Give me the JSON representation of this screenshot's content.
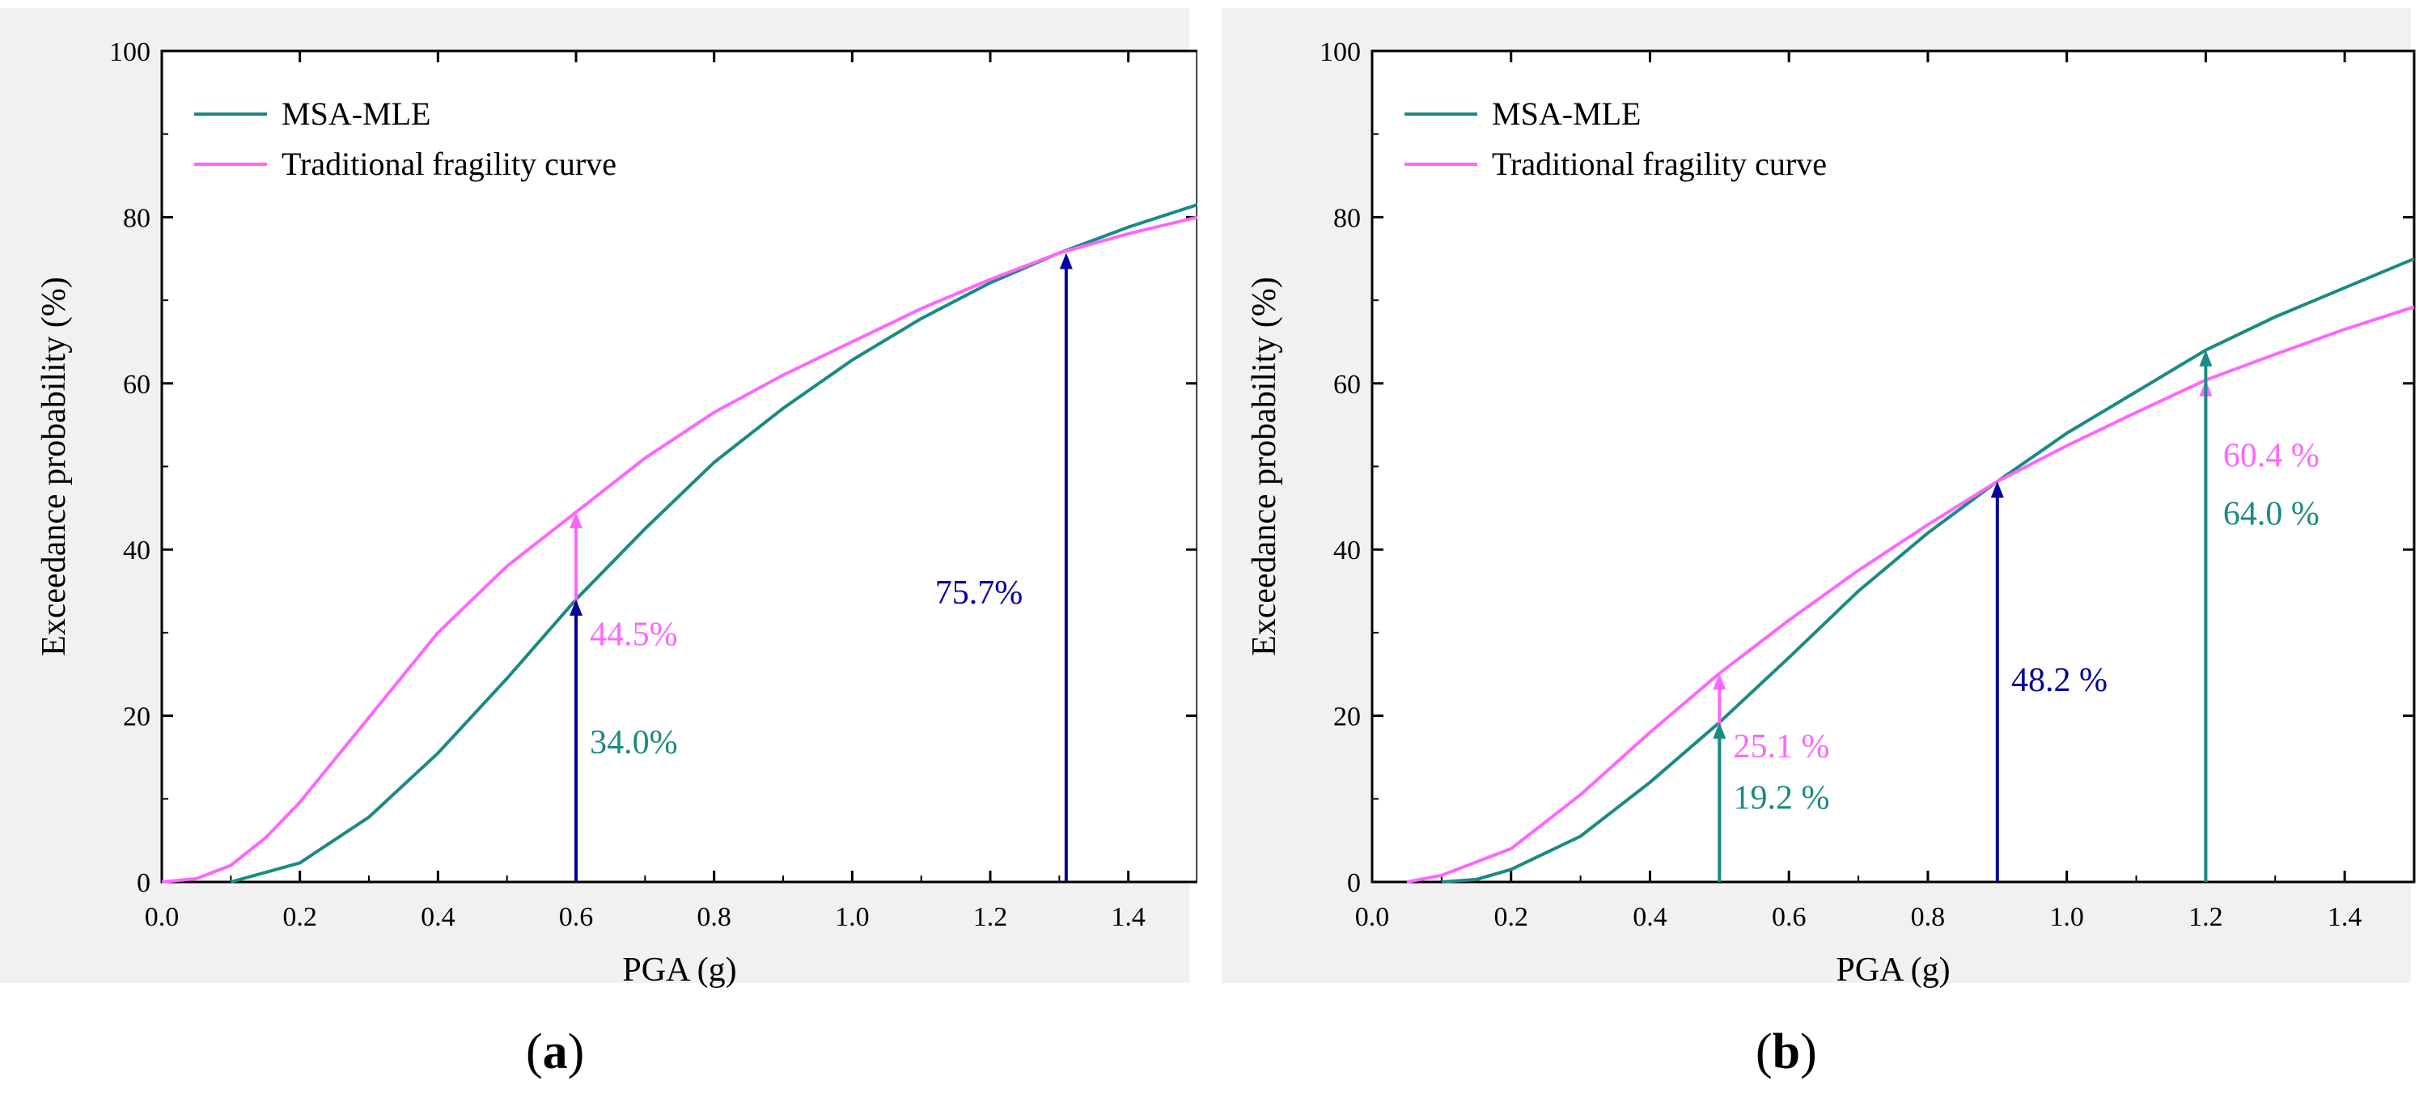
{
  "chart_data": [
    {
      "id": "a",
      "type": "line",
      "caption_letter": "a",
      "xlabel": "PGA (g)",
      "ylabel": "Exceedance probability (%)",
      "xlim": [
        0,
        1.5
      ],
      "ylim": [
        0,
        100
      ],
      "xticks": [
        "0.0",
        "0.2",
        "0.4",
        "0.6",
        "0.8",
        "1.0",
        "1.2",
        "1.4"
      ],
      "yticks": [
        "0",
        "20",
        "40",
        "60",
        "80",
        "100"
      ],
      "legend": [
        {
          "name": "MSA-MLE",
          "color": "#1a8a84"
        },
        {
          "name": "Traditional fragility curve",
          "color": "#ff66ff"
        }
      ],
      "series": [
        {
          "name": "MSA-MLE",
          "color": "#1a8a84",
          "x": [
            0.1,
            0.2,
            0.3,
            0.4,
            0.5,
            0.6,
            0.7,
            0.8,
            0.9,
            1.0,
            1.1,
            1.2,
            1.3,
            1.4,
            1.5
          ],
          "y": [
            0,
            2.3,
            7.8,
            15.5,
            24.5,
            34.0,
            42.5,
            50.5,
            57.0,
            62.8,
            67.8,
            72.1,
            75.7,
            78.8,
            81.5
          ]
        },
        {
          "name": "Traditional fragility curve",
          "color": "#ff66ff",
          "x": [
            0,
            0.05,
            0.1,
            0.15,
            0.2,
            0.3,
            0.4,
            0.5,
            0.6,
            0.7,
            0.8,
            0.9,
            1.0,
            1.1,
            1.2,
            1.3,
            1.4,
            1.5
          ],
          "y": [
            0,
            0.4,
            2.0,
            5.3,
            9.6,
            19.8,
            30.0,
            38.0,
            44.5,
            51.0,
            56.5,
            61.0,
            65.0,
            69.0,
            72.5,
            75.7,
            78.0,
            80.0
          ]
        }
      ],
      "arrows": [
        {
          "x": 0.6,
          "from": 0,
          "to": 44.5,
          "color": "#ff66ff"
        },
        {
          "x": 0.6,
          "from": 0,
          "to": 34.0,
          "color": "#0000a0"
        },
        {
          "x": 1.31,
          "from": 0,
          "to": 75.7,
          "color": "#0000a0"
        }
      ],
      "annotations": [
        {
          "text": "44.5%",
          "x": 0.62,
          "y": 28.5,
          "color": "#ff66ff"
        },
        {
          "text": "34.0%",
          "x": 0.62,
          "y": 15.5,
          "color": "#1a8a84"
        },
        {
          "text": "75.7%",
          "x": 1.12,
          "y": 33.5,
          "color": "#0000a0"
        }
      ]
    },
    {
      "id": "b",
      "type": "line",
      "caption_letter": "b",
      "xlabel": "PGA (g)",
      "ylabel": "Exceedance probability (%)",
      "xlim": [
        0,
        1.5
      ],
      "ylim": [
        0,
        100
      ],
      "xticks": [
        "0.0",
        "0.2",
        "0.4",
        "0.6",
        "0.8",
        "1.0",
        "1.2",
        "1.4"
      ],
      "yticks": [
        "0",
        "20",
        "40",
        "60",
        "80",
        "100"
      ],
      "legend": [
        {
          "name": "MSA-MLE",
          "color": "#1a8a84"
        },
        {
          "name": "Traditional fragility curve",
          "color": "#ff66ff"
        }
      ],
      "series": [
        {
          "name": "MSA-MLE",
          "color": "#1a8a84",
          "x": [
            0.1,
            0.15,
            0.2,
            0.3,
            0.4,
            0.5,
            0.6,
            0.7,
            0.8,
            0.9,
            1.0,
            1.1,
            1.2,
            1.3,
            1.4,
            1.5
          ],
          "y": [
            0,
            0.3,
            1.5,
            5.5,
            12.0,
            19.2,
            27.0,
            35.0,
            42.0,
            48.2,
            54.0,
            59.0,
            64.0,
            68.0,
            71.5,
            75.0
          ]
        },
        {
          "name": "Traditional fragility curve",
          "color": "#ff66ff",
          "x": [
            0.05,
            0.1,
            0.2,
            0.3,
            0.4,
            0.5,
            0.6,
            0.7,
            0.8,
            0.9,
            1.0,
            1.1,
            1.2,
            1.3,
            1.4,
            1.5
          ],
          "y": [
            0,
            0.8,
            4.0,
            10.5,
            18.0,
            25.1,
            31.5,
            37.5,
            43.0,
            48.2,
            52.5,
            56.5,
            60.4,
            63.5,
            66.5,
            69.2
          ]
        }
      ],
      "arrows": [
        {
          "x": 0.5,
          "from": 0,
          "to": 25.1,
          "color": "#ff66ff"
        },
        {
          "x": 0.5,
          "from": 0,
          "to": 19.2,
          "color": "#1a8a84"
        },
        {
          "x": 0.9,
          "from": 0,
          "to": 48.2,
          "color": "#0000a0"
        },
        {
          "x": 1.2,
          "from": 0,
          "to": 60.4,
          "color": "#ff66ff"
        },
        {
          "x": 1.2,
          "from": 0,
          "to": 64.0,
          "color": "#1a8a84"
        }
      ],
      "annotations": [
        {
          "text": "25.1 %",
          "x": 0.52,
          "y": 15.0,
          "color": "#ff66ff"
        },
        {
          "text": "19.2 %",
          "x": 0.52,
          "y": 8.8,
          "color": "#1a8a84"
        },
        {
          "text": "48.2 %",
          "x": 0.92,
          "y": 23.0,
          "color": "#0000a0"
        },
        {
          "text": "60.4 %",
          "x": 1.225,
          "y": 50.0,
          "color": "#ff66ff"
        },
        {
          "text": "64.0 %",
          "x": 1.225,
          "y": 43.0,
          "color": "#1a8a84"
        }
      ]
    }
  ]
}
